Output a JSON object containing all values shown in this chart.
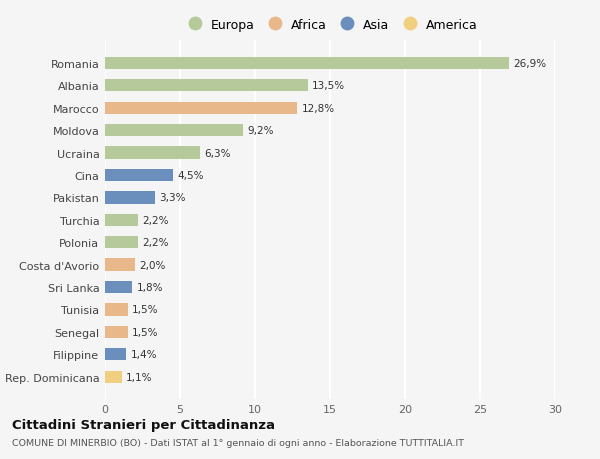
{
  "countries": [
    "Romania",
    "Albania",
    "Marocco",
    "Moldova",
    "Ucraina",
    "Cina",
    "Pakistan",
    "Turchia",
    "Polonia",
    "Costa d'Avorio",
    "Sri Lanka",
    "Tunisia",
    "Senegal",
    "Filippine",
    "Rep. Dominicana"
  ],
  "values": [
    26.9,
    13.5,
    12.8,
    9.2,
    6.3,
    4.5,
    3.3,
    2.2,
    2.2,
    2.0,
    1.8,
    1.5,
    1.5,
    1.4,
    1.1
  ],
  "labels": [
    "26,9%",
    "13,5%",
    "12,8%",
    "9,2%",
    "6,3%",
    "4,5%",
    "3,3%",
    "2,2%",
    "2,2%",
    "2,0%",
    "1,8%",
    "1,5%",
    "1,5%",
    "1,4%",
    "1,1%"
  ],
  "continents": [
    "Europa",
    "Europa",
    "Africa",
    "Europa",
    "Europa",
    "Asia",
    "Asia",
    "Europa",
    "Europa",
    "Africa",
    "Asia",
    "Africa",
    "Africa",
    "Asia",
    "America"
  ],
  "colors": {
    "Europa": "#b5c99a",
    "Africa": "#e8b88a",
    "Asia": "#6b8fbc",
    "America": "#f0d080"
  },
  "xlim": [
    0,
    30
  ],
  "xticks": [
    0,
    5,
    10,
    15,
    20,
    25,
    30
  ],
  "title": "Cittadini Stranieri per Cittadinanza",
  "subtitle": "COMUNE DI MINERBIO (BO) - Dati ISTAT al 1° gennaio di ogni anno - Elaborazione TUTTITALIA.IT",
  "bg_color": "#f5f5f5",
  "grid_color": "#ffffff",
  "bar_height": 0.55,
  "legend_order": [
    "Europa",
    "Africa",
    "Asia",
    "America"
  ]
}
